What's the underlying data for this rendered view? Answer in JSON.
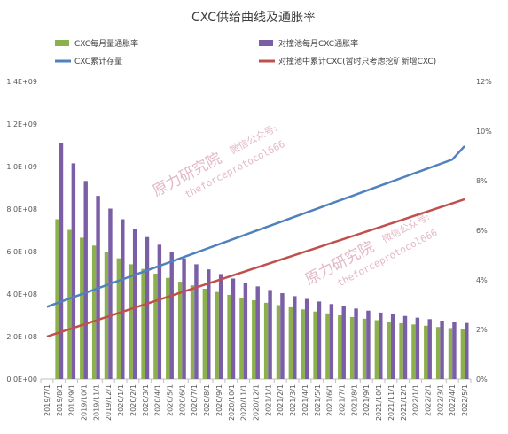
{
  "chart_data": {
    "type": "bar",
    "title": "CXC供给曲线及通胀率",
    "x": [
      "2019/7/1",
      "2019/8/1",
      "2019/9/1",
      "2019/10/1",
      "2019/11/1",
      "2019/12/1",
      "2020/1/1",
      "2020/2/1",
      "2020/3/1",
      "2020/4/1",
      "2020/5/1",
      "2020/6/1",
      "2020/7/1",
      "2020/8/1",
      "2020/9/1",
      "2020/10/1",
      "2020/11/1",
      "2020/12/1",
      "2021/1/1",
      "2021/2/1",
      "2021/3/1",
      "2021/4/1",
      "2021/5/1",
      "2021/6/1",
      "2021/7/1",
      "2021/8/1",
      "2021/9/1",
      "2021/10/1",
      "2021/11/1",
      "2021/12/1",
      "2022/1/1",
      "2022/2/1",
      "2022/3/1",
      "2022/4/1",
      "2022/5/1"
    ],
    "y_left": {
      "ticks": [
        "0.0E+00",
        "2.0E+08",
        "4.0E+08",
        "6.0E+08",
        "8.0E+08",
        "1.0E+09",
        "1.2E+09",
        "1.4E+09"
      ],
      "ylim": [
        0,
        1400000000
      ]
    },
    "y_right": {
      "ticks": [
        "0%",
        "2%",
        "4%",
        "6%",
        "8%",
        "10%",
        "12%"
      ],
      "ylim": [
        0,
        0.12
      ]
    },
    "legend": {
      "position": "top",
      "items": [
        "CXC每月量通胀率",
        "对撞池每月CXC通胀率",
        "CXC累计存量",
        "对撞池中累计CXC(暂时只考虑挖矿新增CXC)"
      ]
    },
    "series": [
      {
        "name": "CXC每月量通胀率",
        "kind": "bar",
        "axis": "left",
        "color": "#8db04f",
        "values": [
          0,
          752000000,
          702000000,
          665000000,
          628000000,
          598000000,
          568000000,
          540000000,
          518000000,
          496000000,
          476000000,
          458000000,
          441000000,
          425000000,
          410000000,
          396000000,
          383000000,
          371000000,
          359000000,
          348000000,
          338000000,
          328000000,
          318000000,
          309000000,
          300000000,
          292000000,
          284000000,
          277000000,
          270000000,
          263000000,
          257000000,
          251000000,
          245000000,
          240000000,
          236000000
        ]
      },
      {
        "name": "对撞池每月CXC通胀率",
        "kind": "bar",
        "axis": "left",
        "color": "#7b5fa6",
        "values": [
          0,
          1110000000,
          1015000000,
          932000000,
          862000000,
          802000000,
          752000000,
          708000000,
          668000000,
          632000000,
          598000000,
          568000000,
          540000000,
          516000000,
          494000000,
          473000000,
          454000000,
          436000000,
          419000000,
          404000000,
          390000000,
          377000000,
          365000000,
          353000000,
          342000000,
          332000000,
          322000000,
          313000000,
          305000000,
          297000000,
          289000000,
          282000000,
          275000000,
          269000000,
          264000000
        ]
      },
      {
        "name": "CXC累计存量",
        "kind": "line",
        "axis": "left",
        "color": "#4f81bd",
        "values": [
          340000000,
          361000000,
          382000000,
          403000000,
          424000000,
          445000000,
          466000000,
          487000000,
          508000000,
          529000000,
          550000000,
          571000000,
          592000000,
          613000000,
          634000000,
          655000000,
          676000000,
          697000000,
          718000000,
          739000000,
          760000000,
          781000000,
          802000000,
          823000000,
          844000000,
          865000000,
          886000000,
          907000000,
          928000000,
          949000000,
          970000000,
          991000000,
          1012000000,
          1033000000,
          1096000000
        ]
      },
      {
        "name": "对撞池中累计CXC(暂时只考虑挖矿新增CXC)",
        "kind": "line",
        "axis": "left",
        "color": "#c0504d",
        "values": [
          200000000,
          219000000,
          238000000,
          257000000,
          276000000,
          295000000,
          314000000,
          333000000,
          352000000,
          371000000,
          390000000,
          409000000,
          428000000,
          447000000,
          466000000,
          485000000,
          504000000,
          523000000,
          542000000,
          561000000,
          580000000,
          599000000,
          618000000,
          637000000,
          656000000,
          675000000,
          694000000,
          713000000,
          732000000,
          751000000,
          770000000,
          789000000,
          808000000,
          827000000,
          846000000
        ]
      }
    ],
    "watermarks": [
      {
        "name": "原力研究院",
        "subtitle": "微信公众号:",
        "code": "theforceprotocol666"
      },
      {
        "name": "原力研究院",
        "subtitle": "微信公众号:",
        "code": "theforceprotocol666"
      }
    ],
    "grid": false
  }
}
